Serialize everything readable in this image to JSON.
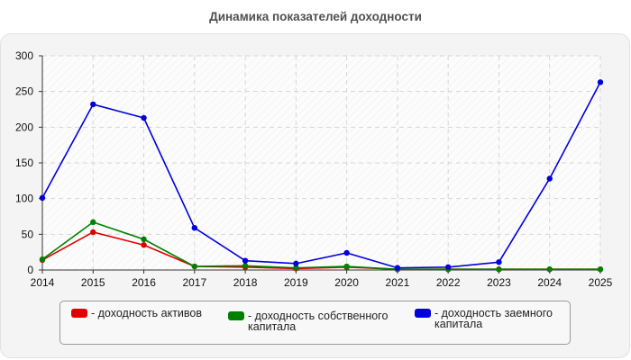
{
  "chart_data": {
    "type": "line",
    "title": "Динамика показателей доходности",
    "categories": [
      "2014",
      "2015",
      "2016",
      "2017",
      "2018",
      "2019",
      "2020",
      "2021",
      "2022",
      "2023",
      "2024",
      "2025"
    ],
    "ylim": [
      0,
      300
    ],
    "yticks": [
      0,
      50,
      100,
      150,
      200,
      250,
      300
    ],
    "grid": true,
    "legend_position": "bottom",
    "series": [
      {
        "name": "- доходность активов",
        "color": "#e00000",
        "values": [
          14,
          53,
          35,
          5,
          4,
          2,
          4,
          1,
          1,
          1,
          1,
          1
        ]
      },
      {
        "name": "- доходность собственного\nкапитала",
        "color": "#008000",
        "values": [
          15,
          67,
          43,
          5,
          6,
          3,
          5,
          1,
          1,
          1,
          1,
          1
        ]
      },
      {
        "name": "- доходность заемного\nкапитала",
        "color": "#0000dd",
        "values": [
          101,
          232,
          213,
          59,
          13,
          9,
          24,
          3,
          4,
          11,
          128,
          263
        ]
      }
    ]
  }
}
